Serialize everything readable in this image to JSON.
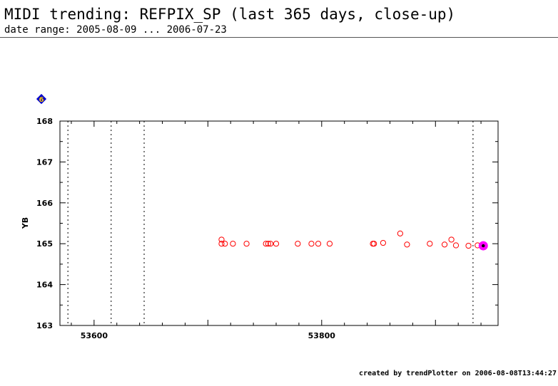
{
  "header": {
    "title": "MIDI trending: REFPIX_SP (last 365 days, close-up)",
    "date_range": "date range: 2005-08-09 ... 2006-07-23"
  },
  "footer": {
    "created_by": "created by trendPlotter on 2006-08-08T13:44:27"
  },
  "marker": {
    "label": "6",
    "color": "#0000cc"
  },
  "colors": {
    "points": "#ff0000",
    "highlight": "#ff00ff"
  },
  "chart_data": {
    "type": "scatter",
    "title": "",
    "xlabel": "",
    "ylabel": "YB",
    "xlim": [
      53570,
      53955
    ],
    "ylim": [
      163,
      168
    ],
    "xticks": [
      53600,
      53800
    ],
    "yticks": [
      163,
      164,
      165,
      166,
      167,
      168
    ],
    "grid": false,
    "vlines": [
      53577,
      53615,
      53644,
      53933
    ],
    "points": [
      {
        "x": 53712,
        "y": 165.1
      },
      {
        "x": 53712,
        "y": 165.0
      },
      {
        "x": 53715,
        "y": 165.0
      },
      {
        "x": 53722,
        "y": 165.0
      },
      {
        "x": 53734,
        "y": 165.0
      },
      {
        "x": 53751,
        "y": 165.0
      },
      {
        "x": 53753,
        "y": 165.0
      },
      {
        "x": 53755,
        "y": 165.0
      },
      {
        "x": 53760,
        "y": 165.0
      },
      {
        "x": 53779,
        "y": 165.0
      },
      {
        "x": 53791,
        "y": 165.0
      },
      {
        "x": 53797,
        "y": 165.0
      },
      {
        "x": 53807,
        "y": 165.0
      },
      {
        "x": 53845,
        "y": 165.0
      },
      {
        "x": 53846,
        "y": 165.0
      },
      {
        "x": 53854,
        "y": 165.02
      },
      {
        "x": 53869,
        "y": 165.25
      },
      {
        "x": 53875,
        "y": 164.98
      },
      {
        "x": 53895,
        "y": 165.0
      },
      {
        "x": 53908,
        "y": 164.98
      },
      {
        "x": 53914,
        "y": 165.1
      },
      {
        "x": 53918,
        "y": 164.96
      },
      {
        "x": 53929,
        "y": 164.95
      },
      {
        "x": 53937,
        "y": 164.96
      }
    ],
    "highlight": {
      "x": 53942,
      "y": 164.95
    }
  }
}
